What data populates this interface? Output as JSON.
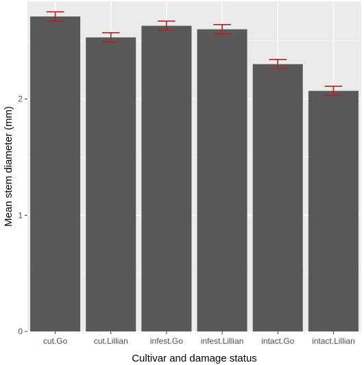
{
  "chart_data": {
    "type": "bar",
    "title": "",
    "xlabel": "Cultivar and damage status",
    "ylabel": "Mean stem diameter (mm)",
    "categories": [
      "cut.Go",
      "cut.Lillian",
      "infest.Go",
      "infest.Lillian",
      "intact.Go",
      "intact.Lillian"
    ],
    "values": [
      2.71,
      2.53,
      2.63,
      2.6,
      2.3,
      2.07
    ],
    "error_bars": [
      {
        "lower": 2.67,
        "upper": 2.75
      },
      {
        "lower": 2.49,
        "upper": 2.57
      },
      {
        "lower": 2.59,
        "upper": 2.67
      },
      {
        "lower": 2.56,
        "upper": 2.64
      },
      {
        "lower": 2.26,
        "upper": 2.34
      },
      {
        "lower": 2.03,
        "upper": 2.11
      }
    ],
    "yticks": [
      0,
      1,
      2
    ],
    "ytick_labels": [
      "0",
      "1",
      "2"
    ],
    "ylim": [
      0,
      2.84
    ],
    "grid": true,
    "legend": "none",
    "colors": {
      "panel_background": "#ebebeb",
      "grid_major": "#ffffff",
      "grid_minor": "#f7f7f7",
      "bar_fill": "#595959",
      "error_bar": "#b22222",
      "tick": "#333333"
    }
  }
}
